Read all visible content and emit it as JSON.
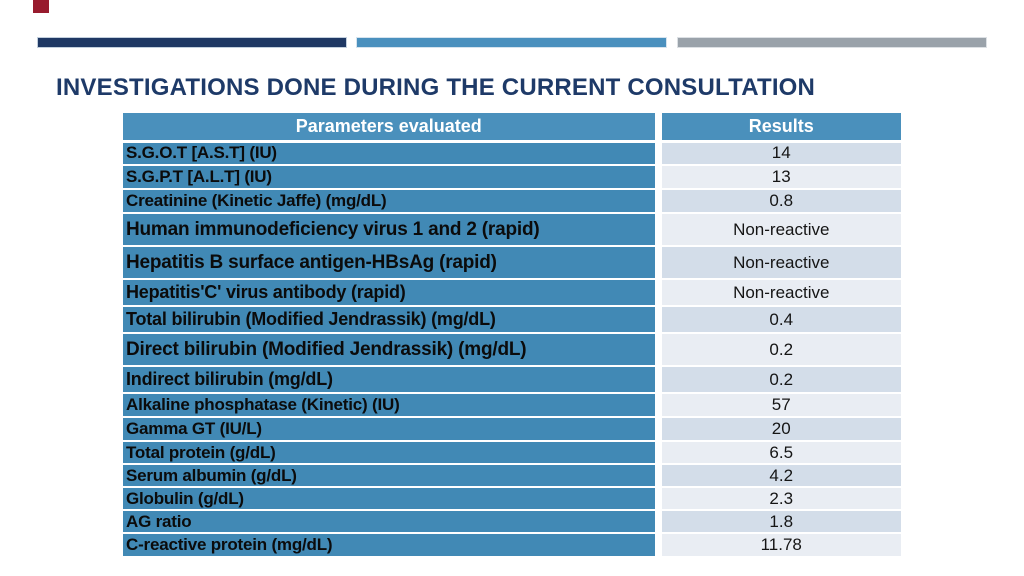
{
  "slide": {
    "title": "INVESTIGATIONS DONE DURING THE CURRENT CONSULTATION",
    "accent_colors": {
      "red_corner_mark": "#981B2E",
      "navy_bar": "#1F3864",
      "blue_bar": "#4A90BE",
      "gray_bar": "#9AA2AA",
      "title_text": "#1E3A68",
      "table_header_blue": "#4A90BC",
      "table_param_blue": "#4189B5",
      "band_dark": "#D3DDE9",
      "band_light": "#E9EDF3"
    }
  },
  "table": {
    "headers": [
      "Parameters evaluated",
      "Results"
    ],
    "rows": [
      {
        "param": "S.G.O.T [A.S.T] (IU)",
        "result": "14"
      },
      {
        "param": "S.G.P.T [A.L.T] (IU)",
        "result": "13"
      },
      {
        "param": "Creatinine (Kinetic Jaffe) (mg/dL)",
        "result": "0.8"
      },
      {
        "param": "Human immunodeficiency virus 1 and 2 (rapid)",
        "result": "Non-reactive"
      },
      {
        "param": "Hepatitis B surface antigen-HBsAg (rapid)",
        "result": "Non-reactive"
      },
      {
        "param": "Hepatitis'C' virus antibody (rapid)",
        "result": "Non-reactive"
      },
      {
        "param": "Total bilirubin (Modified Jendrassik) (mg/dL)",
        "result": "0.4"
      },
      {
        "param": "Direct bilirubin (Modified Jendrassik) (mg/dL)",
        "result": "0.2"
      },
      {
        "param": "Indirect bilirubin (mg/dL)",
        "result": "0.2"
      },
      {
        "param": "Alkaline phosphatase (Kinetic) (IU)",
        "result": "57"
      },
      {
        "param": "Gamma GT (IU/L)",
        "result": "20"
      },
      {
        "param": "Total protein (g/dL)",
        "result": "6.5"
      },
      {
        "param": "Serum albumin (g/dL)",
        "result": "4.2"
      },
      {
        "param": "Globulin (g/dL)",
        "result": "2.3"
      },
      {
        "param": "AG ratio",
        "result": "1.8"
      },
      {
        "param": "C-reactive protein (mg/dL)",
        "result": "11.78"
      }
    ]
  }
}
